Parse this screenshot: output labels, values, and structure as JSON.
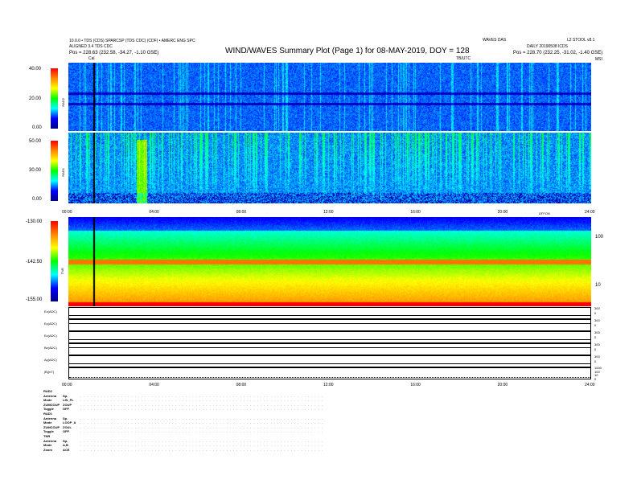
{
  "header": {
    "title": "WIND/WAVES Summary Plot (Page 1) for 08-MAY-2019, DOY = 128",
    "left_line1": "10.0.0 • TDS (CDS) SPARCSP (TDS CDC) (CDF) • AMERC ENG SPC",
    "left_line2": "ALIGNED 3.4 TDS CDC",
    "left_pos": "Pos = 228.63 (232.58, -34.27, -1.10 GSE)",
    "right_top1": "WAVES DAS",
    "right_top2": "L2 STOOL v8.1",
    "right_line2": "DAILY 20190508 ICDS",
    "right_pos": "Pos = 228.70 (232.25, -31.02, -1.40 GSE)",
    "tb_label": "TB/UTC",
    "cal_label": "Cal",
    "msi_label": "MSI"
  },
  "chart_data": [
    {
      "type": "heatmap",
      "name": "RAD2",
      "ylabel": "RAD2",
      "colorbar_ticks": [
        "40.00",
        "20.00",
        "0.00"
      ],
      "clim": [
        0,
        40
      ]
    },
    {
      "type": "heatmap",
      "name": "RAD1",
      "ylabel": "RAD1",
      "colorbar_ticks": [
        "50.00",
        "30.00",
        "0.00"
      ],
      "clim": [
        0,
        50
      ]
    },
    {
      "type": "heatmap",
      "name": "TNR",
      "ylabel": "TNR",
      "colorbar_ticks": [
        "-130.00",
        "-142.50",
        "-155.00"
      ],
      "clim": [
        -155,
        -130
      ],
      "right_ticks": [
        "100",
        "10"
      ],
      "top_right_label": "DFFON"
    },
    {
      "type": "line",
      "rows": [
        {
          "label": "Ex(ADC)",
          "right_ticks": [
            "300",
            "0"
          ]
        },
        {
          "label": "Ey(ADC)",
          "right_ticks": [
            "300",
            "0"
          ]
        },
        {
          "label": "Ez(ADC)",
          "right_ticks": [
            "300",
            "0"
          ]
        },
        {
          "label": "Bx(ADC)",
          "right_ticks": [
            "300",
            "0"
          ]
        },
        {
          "label": "Ay(ADC)",
          "right_ticks": [
            "300",
            "0"
          ]
        },
        {
          "label": "|B|(nT)",
          "right_ticks": [
            "1000",
            "100",
            "10",
            "0"
          ]
        }
      ]
    }
  ],
  "time_ticks": [
    "00:00",
    "04:00",
    "08:00",
    "12:00",
    "16:00",
    "20:00",
    "24:00"
  ],
  "params": [
    [
      "RAD2",
      ""
    ],
    [
      "Antenna",
      "Sp."
    ],
    [
      "Mode",
      "LIN_FL"
    ],
    [
      "ZUMCOUP",
      "ZOUP"
    ],
    [
      "Toggle",
      "OFF"
    ],
    [
      "RAD1",
      ""
    ],
    [
      "Antenna",
      "Sp."
    ],
    [
      "Mode",
      "LOOP_A"
    ],
    [
      "ZUMCOUP",
      "ZOUL"
    ],
    [
      "Toggle",
      "OFF"
    ],
    [
      "TNR",
      ""
    ],
    [
      "Antenna",
      "Sp."
    ],
    [
      "Mode",
      "A,B"
    ],
    [
      "Zoom",
      "ACE"
    ]
  ]
}
